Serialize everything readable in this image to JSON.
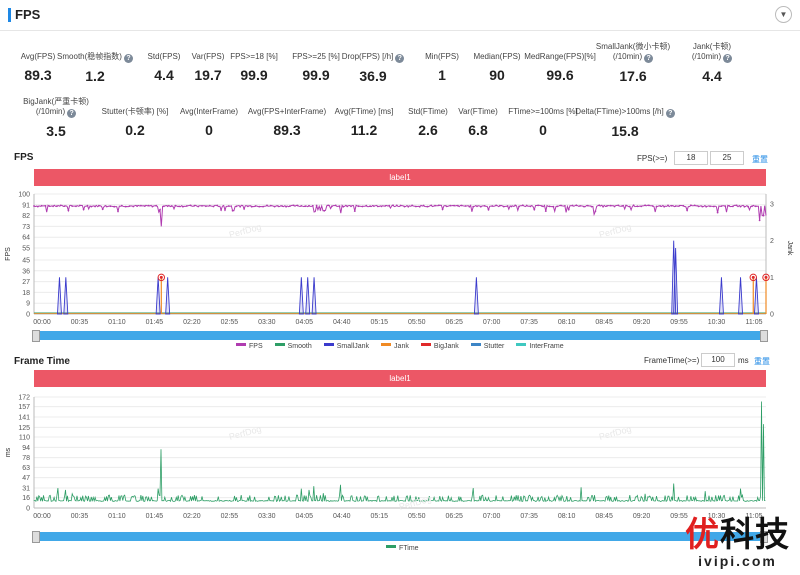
{
  "header": {
    "title": "FPS"
  },
  "metrics_row1": [
    {
      "label": "Avg(FPS)",
      "value": "89.3",
      "help": false
    },
    {
      "label": "Smooth(稳帧指数)",
      "value": "1.2",
      "help": true
    },
    {
      "label": "Std(FPS)",
      "value": "4.4",
      "help": false
    },
    {
      "label": "Var(FPS)",
      "value": "19.7",
      "help": false
    },
    {
      "label": "FPS>=18 [%]",
      "value": "99.9",
      "help": false
    },
    {
      "label": "FPS>=25 [%]",
      "value": "99.9",
      "help": false
    },
    {
      "label": "Drop(FPS) [/h]",
      "value": "36.9",
      "help": true
    },
    {
      "label": "Min(FPS)",
      "value": "1",
      "help": false
    },
    {
      "label": "Median(FPS)",
      "value": "90",
      "help": false
    },
    {
      "label": "MedRange(FPS)[%]",
      "value": "99.6",
      "help": false
    },
    {
      "label": "SmallJank(微小卡顿)",
      "label2": "(/10min)",
      "value": "17.6",
      "help": true
    },
    {
      "label": "Jank(卡顿)",
      "label2": "(/10min)",
      "value": "4.4",
      "help": true
    }
  ],
  "metrics_row2": [
    {
      "label": "BigJank(严重卡顿)",
      "label2": "(/10min)",
      "value": "3.5",
      "help": true
    },
    {
      "label": "Stutter(卡顿率) [%]",
      "value": "0.2",
      "help": false
    },
    {
      "label": "Avg(InterFrame)",
      "value": "0",
      "help": false
    },
    {
      "label": "Avg(FPS+InterFrame)",
      "value": "89.3",
      "help": false
    },
    {
      "label": "Avg(FTime) [ms]",
      "value": "11.2",
      "help": false
    },
    {
      "label": "Std(FTime)",
      "value": "2.6",
      "help": false
    },
    {
      "label": "Var(FTime)",
      "value": "6.8",
      "help": false
    },
    {
      "label": "FTime>=100ms [%]",
      "value": "0",
      "help": false
    },
    {
      "label": "Delta(FTime)>100ms [/h]",
      "value": "15.8",
      "help": true
    }
  ],
  "fps_section": {
    "title": "FPS",
    "filter_label": "FPS(>=)",
    "filter1": "18",
    "filter2": "25",
    "reset": "重置",
    "label_bar": "label1"
  },
  "ft_section": {
    "title": "Frame Time",
    "filter_label": "FrameTime(>=)",
    "filter_value": "100",
    "unit": "ms",
    "reset": "重置",
    "label_bar": "label1"
  },
  "watermark": {
    "text": "PerfDog",
    "brand_red": "优",
    "brand_rest": "科技",
    "url": "ivipi.com"
  },
  "chart_data": [
    {
      "type": "line",
      "name": "fps-chart",
      "ylabel": "FPS",
      "y2label": "Jank",
      "yticks": [
        0,
        9,
        18,
        27,
        36,
        45,
        55,
        64,
        73,
        82,
        91,
        100
      ],
      "y2ticks": [
        0,
        1,
        2,
        3
      ],
      "ylim": [
        0,
        100
      ],
      "y2lim": [
        0,
        3
      ],
      "xlim": [
        0,
        1150
      ],
      "xticks": [
        "00:00",
        "00:35",
        "01:10",
        "01:45",
        "02:20",
        "02:55",
        "03:30",
        "04:05",
        "04:40",
        "05:15",
        "05:50",
        "06:25",
        "07:00",
        "07:35",
        "08:10",
        "08:45",
        "09:20",
        "09:55",
        "10:30",
        "11:05"
      ],
      "legend": [
        "FPS",
        "Smooth",
        "SmallJank",
        "Jank",
        "BigJank",
        "Stutter",
        "InterFrame"
      ],
      "colors": {
        "FPS": "#b03cb0",
        "Smooth": "#2e9e66",
        "SmallJank": "#3b3bcc",
        "Jank": "#f08a24",
        "BigJank": "#e02929",
        "Stutter": "#3d85c6",
        "InterFrame": "#3fc8c0"
      },
      "fps_baseline": 90,
      "fps_dips": [
        [
          200,
          73
        ],
        [
          440,
          85
        ],
        [
          455,
          86
        ],
        [
          482,
          84
        ],
        [
          880,
          83
        ],
        [
          1140,
          78
        ],
        [
          1145,
          82
        ],
        [
          1150,
          82
        ]
      ],
      "smalljank": [
        [
          40,
          1
        ],
        [
          50,
          1
        ],
        [
          195,
          1
        ],
        [
          210,
          1
        ],
        [
          420,
          1
        ],
        [
          430,
          1
        ],
        [
          440,
          1
        ],
        [
          695,
          1
        ],
        [
          1005,
          2
        ],
        [
          1008,
          1.8
        ],
        [
          1080,
          1
        ],
        [
          1110,
          1
        ],
        [
          1135,
          1
        ]
      ],
      "bigjank": [
        [
          200,
          1
        ],
        [
          1130,
          1
        ],
        [
          1150,
          1
        ]
      ]
    },
    {
      "type": "line",
      "name": "frametime-chart",
      "ylabel": "ms",
      "yticks": [
        0,
        16,
        31,
        47,
        63,
        78,
        94,
        110,
        125,
        141,
        157,
        172
      ],
      "ylim": [
        0,
        172
      ],
      "xlim": [
        0,
        1150
      ],
      "xticks": [
        "00:00",
        "00:35",
        "01:10",
        "01:45",
        "02:20",
        "02:55",
        "03:30",
        "04:05",
        "04:40",
        "05:15",
        "05:50",
        "06:25",
        "07:00",
        "07:35",
        "08:10",
        "08:45",
        "09:20",
        "09:55",
        "10:30",
        "11:05"
      ],
      "legend": [
        "FTime"
      ],
      "baseline": 11,
      "spikes": [
        [
          38,
          31
        ],
        [
          50,
          28
        ],
        [
          60,
          22
        ],
        [
          195,
          30
        ],
        [
          200,
          91
        ],
        [
          208,
          25
        ],
        [
          235,
          22
        ],
        [
          420,
          30
        ],
        [
          432,
          28
        ],
        [
          440,
          34
        ],
        [
          455,
          23
        ],
        [
          482,
          36
        ],
        [
          640,
          22
        ],
        [
          690,
          31
        ],
        [
          860,
          32
        ],
        [
          880,
          29
        ],
        [
          960,
          22
        ],
        [
          1000,
          45
        ],
        [
          1005,
          38
        ],
        [
          1055,
          26
        ],
        [
          1090,
          34
        ],
        [
          1110,
          30
        ],
        [
          1135,
          40
        ],
        [
          1143,
          165
        ],
        [
          1146,
          130
        ]
      ]
    }
  ]
}
